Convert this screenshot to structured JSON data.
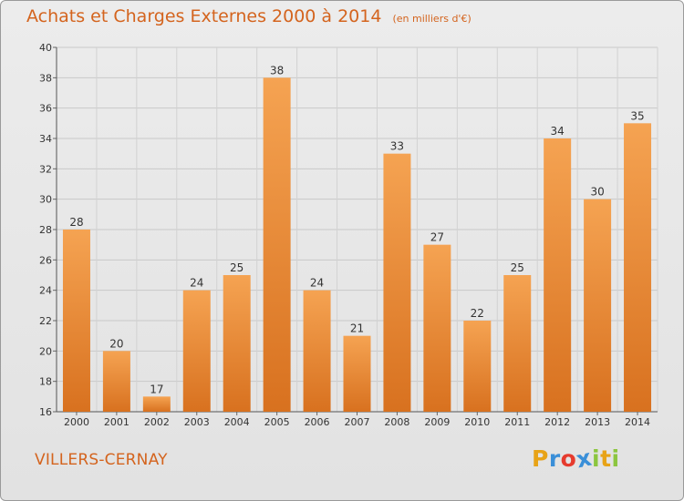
{
  "title": "Achats et Charges Externes 2000 à 2014",
  "subtitle": "(en milliers d'€)",
  "location": "VILLERS-CERNAY",
  "logo": {
    "text": "Proxiti",
    "letters": [
      {
        "ch": "P",
        "color": "#e8a317"
      },
      {
        "ch": "r",
        "color": "#3a8fd8"
      },
      {
        "ch": "o",
        "color": "#e63b2e"
      },
      {
        "ch": "x",
        "color": "#3a8fd8"
      },
      {
        "ch": "i",
        "color": "#8cc63f"
      },
      {
        "ch": "t",
        "color": "#e8a317"
      },
      {
        "ch": "i",
        "color": "#8cc63f"
      }
    ]
  },
  "colors": {
    "bar_light": "#f5a352",
    "bar_dark": "#d8711f",
    "text_accent": "#d4641e"
  },
  "chart_data": {
    "type": "bar",
    "categories": [
      "2000",
      "2001",
      "2002",
      "2003",
      "2004",
      "2005",
      "2006",
      "2007",
      "2008",
      "2009",
      "2010",
      "2011",
      "2012",
      "2013",
      "2014"
    ],
    "values": [
      28,
      20,
      17,
      24,
      25,
      38,
      24,
      21,
      33,
      27,
      22,
      25,
      34,
      30,
      35
    ],
    "ylim": [
      16,
      40
    ],
    "yticks": [
      16,
      18,
      20,
      22,
      24,
      26,
      28,
      30,
      32,
      34,
      36,
      38,
      40
    ],
    "grid": true,
    "data_labels": true
  }
}
